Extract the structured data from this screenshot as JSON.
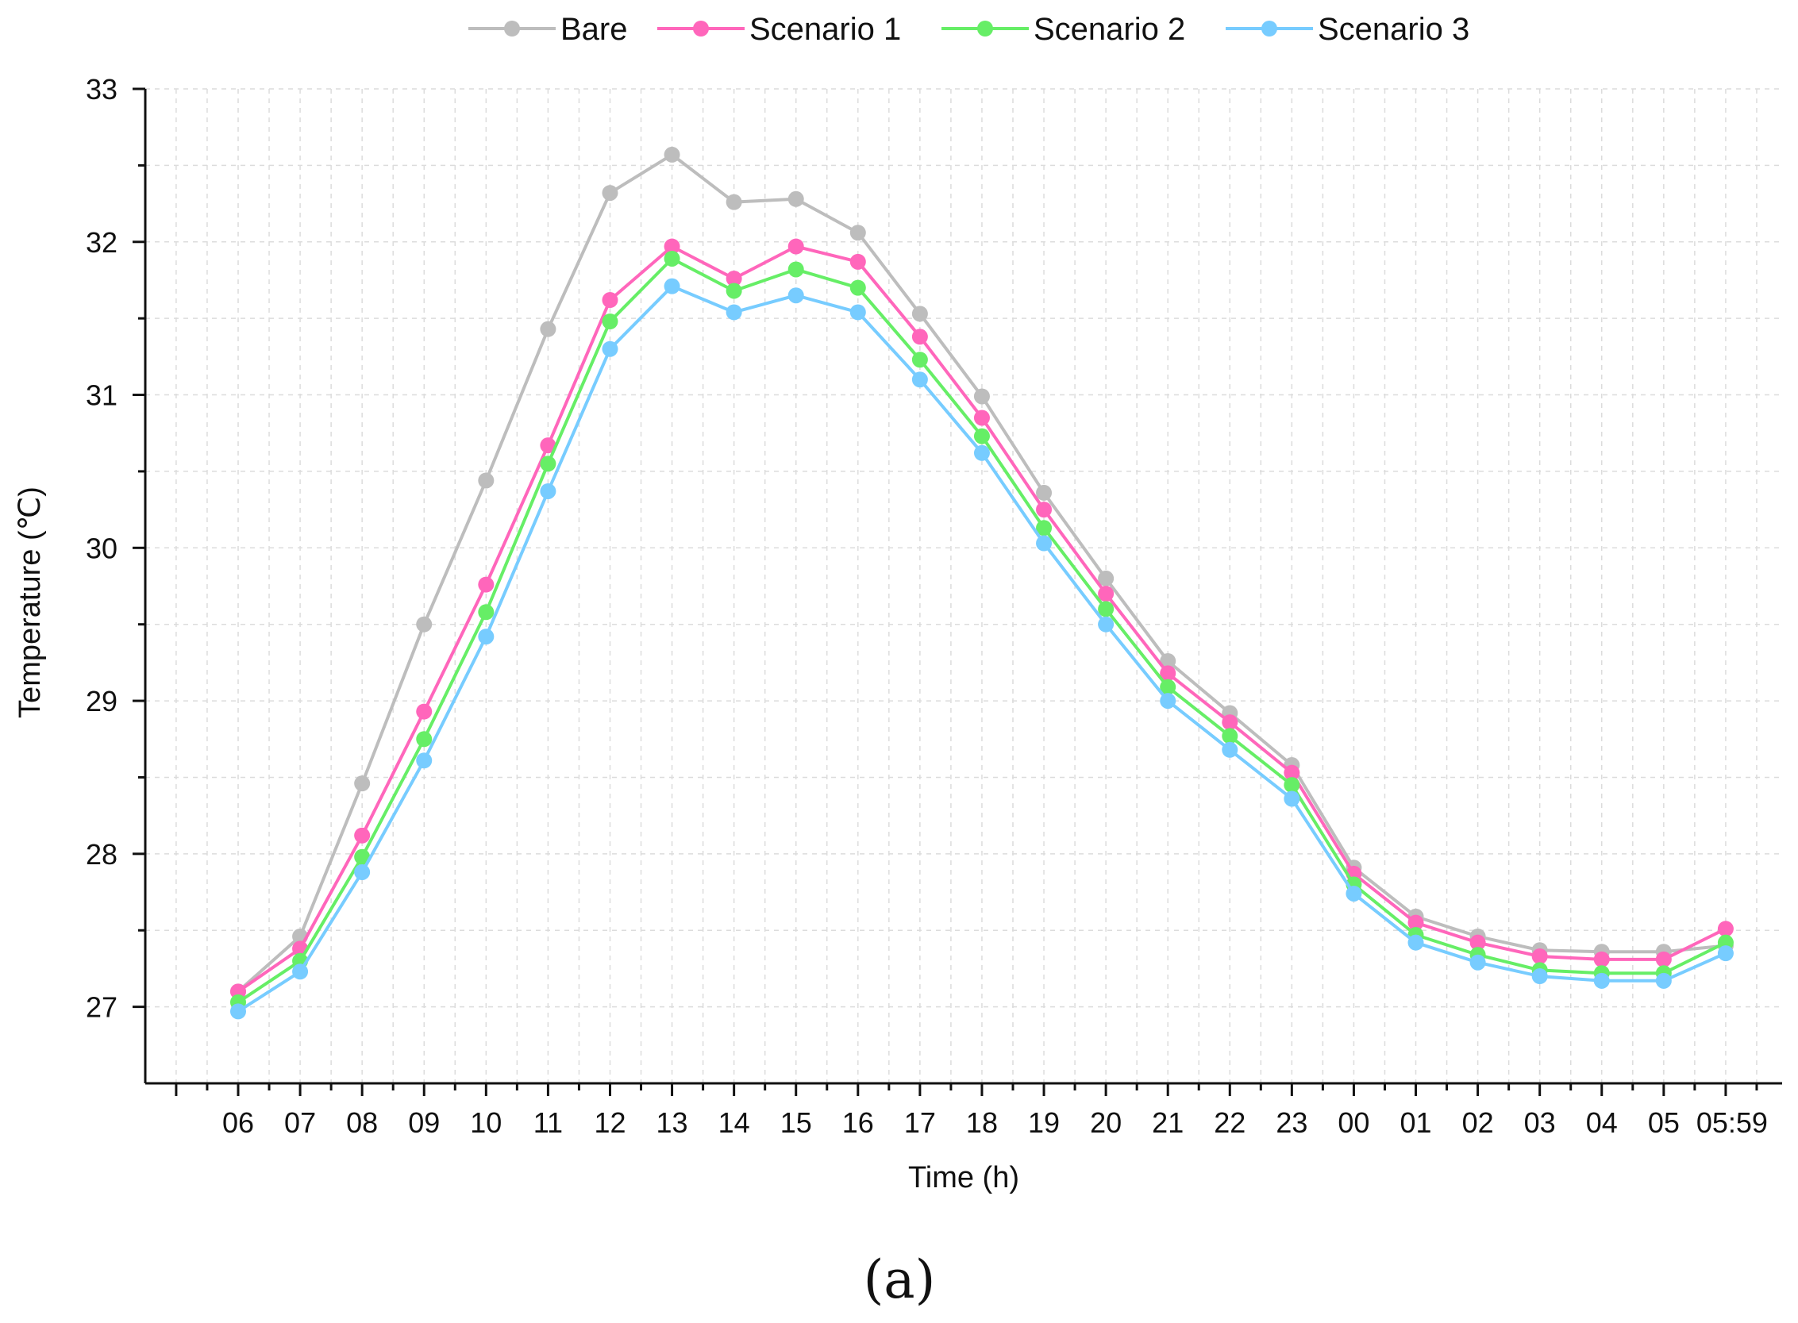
{
  "chart_data": {
    "type": "line",
    "title": "",
    "xlabel": "Time (h)",
    "ylabel": "Temperature (℃)",
    "panel_label": "(a)",
    "categories": [
      "06",
      "07",
      "08",
      "09",
      "10",
      "11",
      "12",
      "13",
      "14",
      "15",
      "16",
      "17",
      "18",
      "19",
      "20",
      "21",
      "22",
      "23",
      "00",
      "01",
      "02",
      "03",
      "04",
      "05",
      "05:59"
    ],
    "ylim": [
      26.5,
      33
    ],
    "yticks": [
      27,
      28,
      29,
      30,
      31,
      32,
      33
    ],
    "grid": true,
    "legend_position": "top-center",
    "series": [
      {
        "name": "Bare",
        "color": "#bdbdbd",
        "values": [
          27.1,
          27.46,
          28.46,
          29.5,
          30.44,
          31.43,
          32.32,
          32.57,
          32.26,
          32.28,
          32.06,
          31.53,
          30.99,
          30.36,
          29.8,
          29.26,
          28.92,
          28.58,
          27.91,
          27.59,
          27.46,
          27.37,
          27.36,
          27.36,
          27.4
        ]
      },
      {
        "name": "Scenario 1",
        "color": "#ff66bb",
        "values": [
          27.1,
          27.38,
          28.12,
          28.93,
          29.76,
          30.67,
          31.62,
          31.97,
          31.76,
          31.97,
          31.87,
          31.38,
          30.85,
          30.25,
          29.7,
          29.18,
          28.86,
          28.53,
          27.87,
          27.55,
          27.42,
          27.33,
          27.31,
          27.31,
          27.51
        ]
      },
      {
        "name": "Scenario 2",
        "color": "#66ee66",
        "values": [
          27.03,
          27.3,
          27.98,
          28.75,
          29.58,
          30.55,
          31.48,
          31.89,
          31.68,
          31.82,
          31.7,
          31.23,
          30.73,
          30.13,
          29.6,
          29.09,
          28.77,
          28.45,
          27.8,
          27.47,
          27.34,
          27.24,
          27.22,
          27.22,
          27.42
        ]
      },
      {
        "name": "Scenario 3",
        "color": "#77ccff",
        "values": [
          26.97,
          27.23,
          27.88,
          28.61,
          29.42,
          30.37,
          31.3,
          31.71,
          31.54,
          31.65,
          31.54,
          31.1,
          30.62,
          30.03,
          29.5,
          29.0,
          28.68,
          28.36,
          27.74,
          27.42,
          27.29,
          27.2,
          27.17,
          27.17,
          27.35
        ]
      }
    ]
  }
}
